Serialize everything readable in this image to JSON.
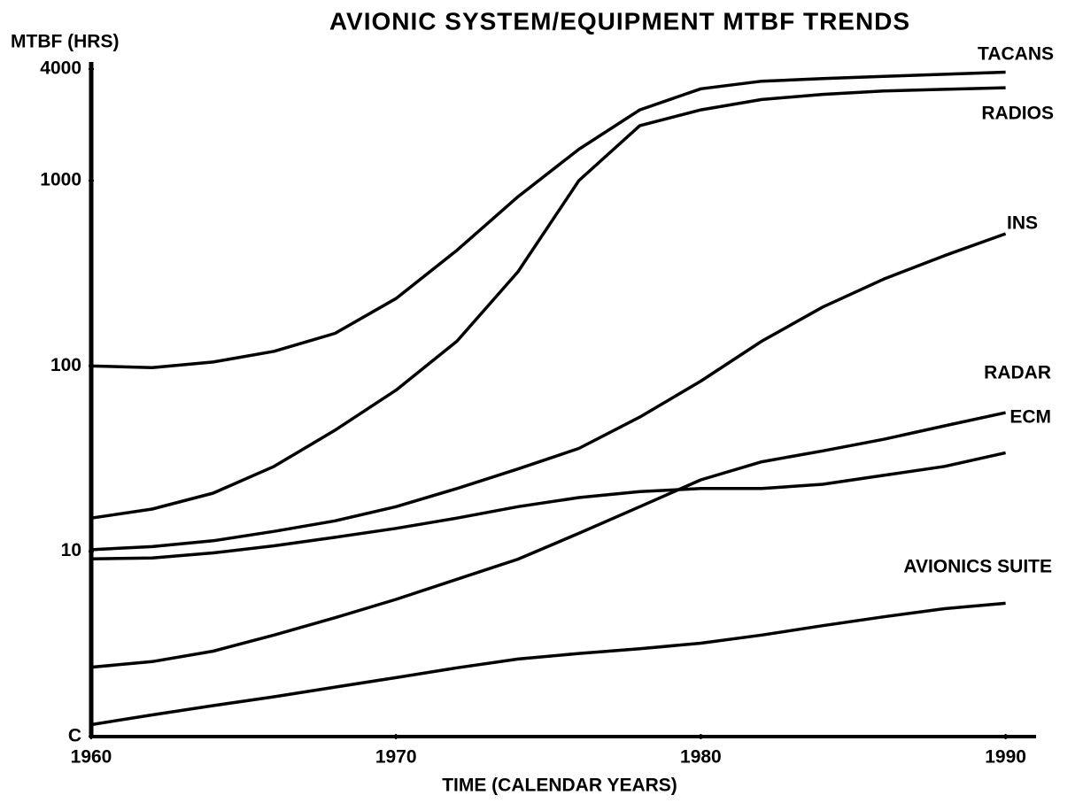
{
  "chart_data": {
    "type": "line",
    "title": "AVIONIC SYSTEM/EQUIPMENT MTBF TRENDS",
    "y_label": "MTBF (HRS)",
    "x_label": "TIME (CALENDAR YEARS)",
    "x": [
      1960,
      1962,
      1964,
      1966,
      1968,
      1970,
      1972,
      1974,
      1976,
      1978,
      1980,
      1982,
      1984,
      1986,
      1988,
      1990
    ],
    "xlim": [
      1960,
      1991
    ],
    "xticks": [
      1960,
      1970,
      1980,
      1990
    ],
    "ylim": [
      1,
      4000
    ],
    "yticks": [
      {
        "value": 1,
        "label": "C"
      },
      10,
      100,
      1000,
      4000
    ],
    "log_y": true,
    "grid": false,
    "series": [
      {
        "name": "TACANS",
        "color": "#000000",
        "values": [
          100,
          98,
          105,
          120,
          150,
          231,
          421,
          819,
          1477,
          2410,
          3130,
          3440,
          3550,
          3650,
          3750,
          3850
        ]
      },
      {
        "name": "RADIOS",
        "color": "#000000",
        "values": [
          15.1,
          16.9,
          20.6,
          28.7,
          45,
          74,
          136,
          322,
          1000,
          1980,
          2410,
          2740,
          2920,
          3050,
          3110,
          3170
        ]
      },
      {
        "name": "INS",
        "color": "#000000",
        "values": [
          10.2,
          10.6,
          11.4,
          12.8,
          14.6,
          17.4,
          21.8,
          27.8,
          35.9,
          53,
          82.8,
          136,
          208,
          294,
          394,
          517
        ]
      },
      {
        "name": "RADAR",
        "color": "#000000",
        "values": [
          2.37,
          2.54,
          2.89,
          3.53,
          4.38,
          5.5,
          7.06,
          9.06,
          12.5,
          17.4,
          24.3,
          30.4,
          34.8,
          40.2,
          47.5,
          56
        ]
      },
      {
        "name": "ECM",
        "color": "#000000",
        "values": [
          9.1,
          9.2,
          9.8,
          10.7,
          11.9,
          13.3,
          15.1,
          17.4,
          19.5,
          21,
          21.8,
          21.8,
          23,
          25.7,
          28.7,
          34
        ]
      },
      {
        "name": "AVIONICS SUITE",
        "color": "#000000",
        "values": [
          1.16,
          1.31,
          1.47,
          1.64,
          1.85,
          2.08,
          2.35,
          2.62,
          2.81,
          2.98,
          3.19,
          3.53,
          3.97,
          4.43,
          4.9,
          5.24
        ]
      }
    ]
  }
}
